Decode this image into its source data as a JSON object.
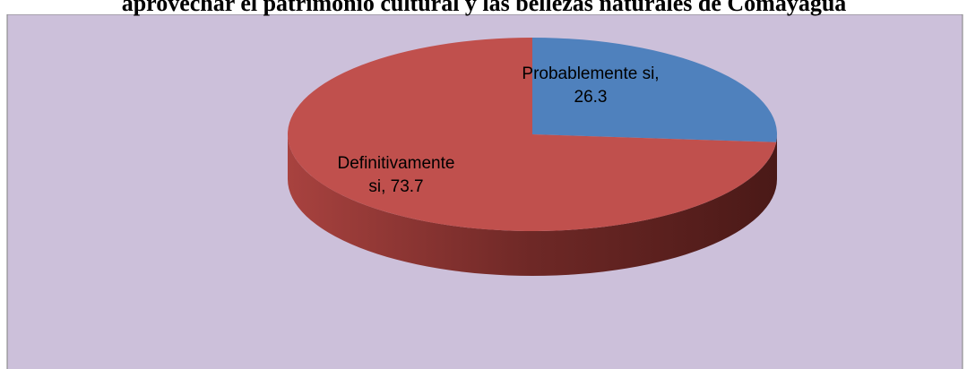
{
  "chart_data": {
    "type": "pie",
    "title": "aprovechar el patrimonio cultural y las bellezas naturales de Comayagua",
    "categories": [
      "Probablemente si",
      "Definitivamente si"
    ],
    "values": [
      26.3,
      73.7
    ],
    "value_labels": [
      [
        "Probablemente si,",
        "26.3"
      ],
      [
        "Definitivamente",
        "si, 73.7"
      ]
    ],
    "colors": [
      "#4f81bd",
      "#c0504d"
    ]
  }
}
